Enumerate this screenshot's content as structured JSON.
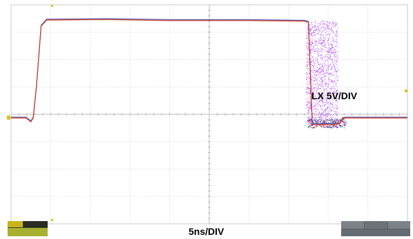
{
  "chart_data": {
    "type": "line",
    "title": "",
    "annotations": {
      "vertical_scale": "LX 5V/DIV",
      "time_scale": "5ns/DIV"
    },
    "grid": true,
    "divisions": {
      "x": 10,
      "y": 8
    },
    "x_unit": "ns",
    "y_unit": "V",
    "xlim": [
      0,
      50
    ],
    "ylim": [
      -20,
      20
    ],
    "series": [
      {
        "trace": "LX",
        "x": [
          0.0,
          1.5,
          1.9,
          2.5,
          2.8,
          3.2,
          3.8,
          4.5,
          5.5,
          12,
          20,
          30,
          37.0,
          37.5,
          38.0,
          40.5,
          41.5,
          41.8,
          42.2,
          45,
          50
        ],
        "y": [
          -0.6,
          -0.6,
          -0.6,
          -1.3,
          -0.6,
          5.0,
          16.2,
          17.3,
          17.3,
          17.4,
          17.2,
          17.2,
          17.1,
          16.9,
          -1.8,
          -1.8,
          -1.6,
          -0.7,
          -0.6,
          -0.6,
          -0.6
        ]
      }
    ],
    "jitter_band": {
      "x_start": 37.2,
      "x_end": 41.2
    },
    "trace_colors": [
      "#1f3fb0",
      "#7a1fcf",
      "#1aa6a0",
      "#e0722a",
      "#d12a2a"
    ],
    "jitter_color": "#a020f0"
  }
}
